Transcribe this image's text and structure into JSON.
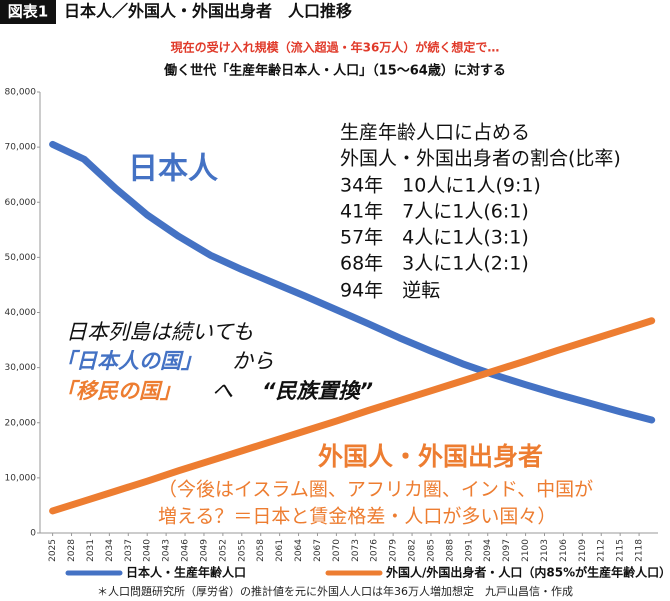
{
  "chart_data": {
    "type": "line",
    "badge": "図表1",
    "title": "日本人／外国人・外国出身者　人口推移",
    "subtitle": "現在の受け入れ規模（流入超過・年36万人）が続く想定で…",
    "heading": "働く世代「生産年齢日本人・人口」（15〜64歳）に対する",
    "x": [
      2025,
      2030,
      2035,
      2040,
      2045,
      2050,
      2055,
      2060,
      2065,
      2070,
      2075,
      2080,
      2085,
      2090,
      2095,
      2100,
      2105,
      2110,
      2115,
      2120
    ],
    "xlim": [
      2023,
      2121
    ],
    "xticks": [
      2025,
      2028,
      2031,
      2034,
      2037,
      2040,
      2043,
      2046,
      2049,
      2052,
      2055,
      2058,
      2061,
      2064,
      2067,
      2070,
      2073,
      2076,
      2079,
      2082,
      2085,
      2088,
      2091,
      2094,
      2097,
      2100,
      2103,
      2106,
      2109,
      2112,
      2115,
      2118
    ],
    "ylim": [
      0,
      80000
    ],
    "yticks": [
      0,
      {
        "value": 10000,
        "label": "10,000"
      },
      {
        "value": 20000,
        "label": "20,000"
      },
      {
        "value": 30000,
        "label": "30,000"
      },
      {
        "value": 40000,
        "label": "40,000"
      },
      {
        "value": 50000,
        "label": "50,000"
      },
      {
        "value": 60000,
        "label": "60,000"
      },
      {
        "value": 70000,
        "label": "70,000"
      },
      {
        "value": 80000,
        "label": "80,000"
      }
    ],
    "series": [
      {
        "name": "日本人・生産年齢人口",
        "color": "#4472c4",
        "values": [
          70500,
          67800,
          62500,
          57700,
          53800,
          50400,
          47800,
          45400,
          43000,
          40500,
          38000,
          35400,
          33000,
          30700,
          28700,
          26900,
          25200,
          23600,
          22000,
          20500
        ]
      },
      {
        "name": "外国人/外国出身者・人口（内85%が生産年齢人口）",
        "color": "#ed7d31",
        "values": [
          4000,
          5800,
          7600,
          9400,
          11300,
          13100,
          14900,
          16700,
          18500,
          20300,
          22200,
          24000,
          25800,
          27600,
          29400,
          31200,
          33100,
          34900,
          36700,
          38500
        ]
      }
    ],
    "annotations": [
      "日本人",
      "生産年齢人口に占める",
      "外国人・外国出身者の割合(比率)",
      "34年　10人に1人(9:1)",
      "41年　7人に1人(6:1)",
      "57年　4人に1人(3:1)",
      "68年　3人に1人(2:1)",
      "94年　逆転",
      "日本列島は続いても",
      "「日本人の国」",
      "から",
      "「移民の国」",
      "へ",
      "“民族置換”",
      "外国人・外国出身者",
      "（今後はイスラム圏、アフリカ圏、インド、中国が",
      "増える？＝日本と賃金格差・人口が多い国々）"
    ],
    "note": "＊人口問題研究所（厚労省）の推計値を元に外国人人口は年36万人増加想定　九戸山昌信・作成"
  }
}
